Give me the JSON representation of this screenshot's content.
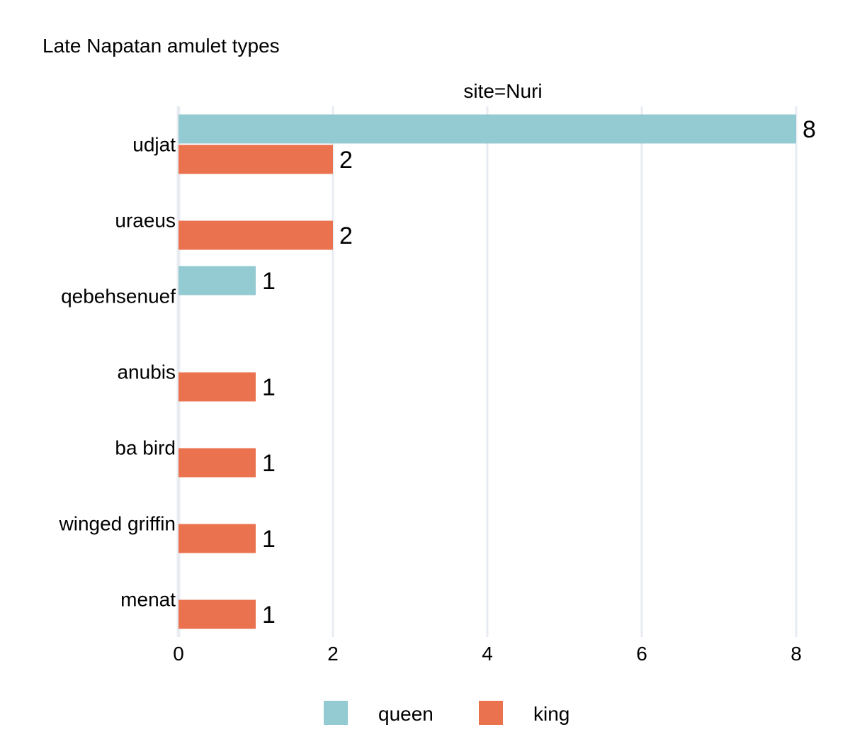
{
  "chart_data": {
    "type": "bar",
    "orientation": "horizontal",
    "title": "Late Napatan amulet types",
    "facet_label": "site=Nuri",
    "categories": [
      "udjat",
      "uraeus",
      "qebehsenuef",
      "anubis",
      "ba bird",
      "winged griffin",
      "menat"
    ],
    "series": [
      {
        "name": "queen",
        "color": "#94cad2",
        "values": [
          8,
          null,
          1,
          null,
          null,
          null,
          null
        ]
      },
      {
        "name": "king",
        "color": "#eb724f",
        "values": [
          2,
          2,
          null,
          1,
          1,
          1,
          1
        ]
      }
    ],
    "xlim": [
      0,
      8
    ],
    "xticks": [
      0,
      2,
      4,
      6,
      8
    ],
    "xlabel": "",
    "ylabel": "",
    "grid": true,
    "data_labels": true,
    "legend_position": "bottom"
  }
}
